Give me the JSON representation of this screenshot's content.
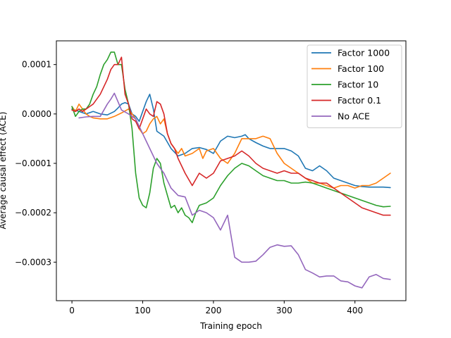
{
  "chart_data": {
    "type": "line",
    "title": "",
    "xlabel": "Training epoch",
    "ylabel": "Average causal effect (ACE)",
    "xlim": [
      -22,
      472
    ],
    "ylim": [
      -0.000378,
      0.000148
    ],
    "xticks": [
      0,
      100,
      200,
      300,
      400
    ],
    "xtick_labels": [
      "0",
      "100",
      "200",
      "300",
      "400"
    ],
    "yticks": [
      0.0001,
      0.0,
      -0.0001,
      -0.0002,
      -0.0003
    ],
    "ytick_labels": [
      "0.0001",
      "0.0000",
      "−0.0001",
      "−0.0002",
      "−0.0003"
    ],
    "grid": false,
    "legend_position": "top-right",
    "series": [
      {
        "name": "Factor 1000",
        "color": "#1f77b4",
        "x": [
          0,
          10,
          20,
          30,
          40,
          50,
          60,
          65,
          70,
          75,
          80,
          85,
          90,
          95,
          100,
          105,
          110,
          115,
          120,
          130,
          140,
          150,
          160,
          170,
          180,
          190,
          200,
          210,
          220,
          230,
          240,
          245,
          250,
          260,
          270,
          280,
          290,
          300,
          310,
          320,
          330,
          340,
          350,
          360,
          370,
          380,
          390,
          400,
          410,
          420,
          430,
          440,
          450
        ],
        "y": [
          1e-05,
          5e-06,
          0.0,
          5e-06,
          0.0,
          -2e-06,
          5e-06,
          1.2e-05,
          2e-05,
          2.3e-05,
          2e-05,
          0.0,
          -5e-06,
          -1.5e-05,
          5e-06,
          2.5e-05,
          4e-05,
          1e-05,
          -3.5e-05,
          -4.5e-05,
          -7e-05,
          -8.5e-05,
          -8e-05,
          -7e-05,
          -6.8e-05,
          -7.2e-05,
          -8e-05,
          -5.5e-05,
          -4.5e-05,
          -4.8e-05,
          -4.5e-05,
          -4.2e-05,
          -5e-05,
          -5.8e-05,
          -6.5e-05,
          -7e-05,
          -7e-05,
          -7e-05,
          -7.5e-05,
          -8.5e-05,
          -0.00011,
          -0.000115,
          -0.000105,
          -0.000115,
          -0.00013,
          -0.000135,
          -0.00014,
          -0.000145,
          -0.000147,
          -0.000148,
          -0.000148,
          -0.000148,
          -0.000149
        ]
      },
      {
        "name": "Factor 100",
        "color": "#ff7f0e",
        "x": [
          0,
          5,
          10,
          15,
          20,
          25,
          30,
          40,
          50,
          60,
          70,
          80,
          90,
          95,
          100,
          105,
          110,
          115,
          120,
          125,
          130,
          135,
          140,
          150,
          155,
          160,
          170,
          180,
          185,
          190,
          200,
          210,
          220,
          230,
          240,
          250,
          260,
          270,
          280,
          290,
          300,
          310,
          320,
          330,
          340,
          350,
          360,
          370,
          380,
          390,
          400,
          410,
          420,
          430,
          440,
          450
        ],
        "y": [
          1.5e-05,
          5e-06,
          2e-05,
          1e-05,
          0.0,
          -5e-06,
          -8e-06,
          -1e-05,
          -1e-05,
          -5e-06,
          2e-06,
          1e-05,
          -1e-05,
          -3e-05,
          -4e-05,
          -3.5e-05,
          -2e-05,
          -1e-05,
          -5e-06,
          -2e-05,
          -1e-05,
          -4e-05,
          -6e-05,
          -8e-05,
          -7e-05,
          -8.5e-05,
          -8e-05,
          -7e-05,
          -9e-05,
          -7.5e-05,
          -7e-05,
          -9e-05,
          -0.0001,
          -8e-05,
          -5e-05,
          -5e-05,
          -5e-05,
          -4.5e-05,
          -5e-05,
          -8e-05,
          -0.0001,
          -0.00011,
          -0.00012,
          -0.00013,
          -0.00014,
          -0.00014,
          -0.000145,
          -0.00015,
          -0.000145,
          -0.000145,
          -0.00015,
          -0.000145,
          -0.000145,
          -0.00014,
          -0.00013,
          -0.00012
        ]
      },
      {
        "name": "Factor 10",
        "color": "#2ca02c",
        "x": [
          0,
          5,
          10,
          15,
          20,
          25,
          30,
          35,
          40,
          45,
          50,
          55,
          60,
          65,
          70,
          75,
          80,
          85,
          90,
          95,
          100,
          105,
          110,
          115,
          120,
          125,
          130,
          135,
          140,
          145,
          150,
          155,
          160,
          165,
          170,
          175,
          180,
          190,
          200,
          210,
          220,
          230,
          240,
          250,
          260,
          270,
          280,
          290,
          300,
          310,
          320,
          330,
          340,
          350,
          360,
          370,
          380,
          390,
          400,
          410,
          420,
          430,
          440,
          450
        ],
        "y": [
          1.5e-05,
          -5e-06,
          5e-06,
          1e-05,
          1e-05,
          2e-05,
          4e-05,
          5.5e-05,
          8e-05,
          0.0001,
          0.00011,
          0.000125,
          0.000125,
          0.0001,
          0.0001,
          5e-05,
          2e-05,
          -3e-05,
          -0.00012,
          -0.00017,
          -0.000185,
          -0.00019,
          -0.00016,
          -0.00011,
          -9e-05,
          -0.0001,
          -0.00014,
          -0.000165,
          -0.00019,
          -0.000185,
          -0.0002,
          -0.00019,
          -0.000205,
          -0.00021,
          -0.00022,
          -0.0002,
          -0.000185,
          -0.00018,
          -0.00017,
          -0.000145,
          -0.000125,
          -0.00011,
          -0.0001,
          -0.000105,
          -0.000115,
          -0.000125,
          -0.00013,
          -0.000135,
          -0.000135,
          -0.00014,
          -0.00014,
          -0.000138,
          -0.00014,
          -0.000145,
          -0.00015,
          -0.000155,
          -0.00016,
          -0.000165,
          -0.00017,
          -0.000175,
          -0.00018,
          -0.000185,
          -0.000188,
          -0.000187
        ]
      },
      {
        "name": "Factor 0.1",
        "color": "#d62728",
        "x": [
          0,
          5,
          10,
          15,
          20,
          30,
          40,
          50,
          55,
          60,
          65,
          70,
          75,
          80,
          85,
          90,
          95,
          100,
          105,
          110,
          115,
          120,
          125,
          130,
          135,
          140,
          145,
          150,
          160,
          170,
          180,
          190,
          200,
          210,
          220,
          230,
          240,
          250,
          260,
          270,
          280,
          290,
          300,
          310,
          320,
          330,
          340,
          350,
          360,
          370,
          380,
          390,
          400,
          410,
          420,
          430,
          440,
          450
        ],
        "y": [
          8e-06,
          5e-06,
          1e-05,
          5e-06,
          1e-05,
          2e-05,
          4e-05,
          7e-05,
          9e-05,
          0.0001,
          0.0001,
          0.000115,
          4e-05,
          2e-05,
          -1e-05,
          -1.5e-05,
          -3e-05,
          -1e-05,
          1e-05,
          0.0,
          -5e-06,
          2.5e-05,
          2e-05,
          0.0,
          -4e-05,
          -6e-05,
          -7e-05,
          -9e-05,
          -0.00012,
          -0.000145,
          -0.00012,
          -0.00013,
          -0.00012,
          -9.5e-05,
          -9e-05,
          -8.5e-05,
          -7.5e-05,
          -8.5e-05,
          -0.0001,
          -0.00011,
          -0.000115,
          -0.00012,
          -0.000115,
          -0.00012,
          -0.00012,
          -0.00013,
          -0.000135,
          -0.00014,
          -0.00014,
          -0.00015,
          -0.00016,
          -0.00017,
          -0.00018,
          -0.00019,
          -0.000195,
          -0.0002,
          -0.000205,
          -0.000205
        ]
      },
      {
        "name": "No ACE",
        "color": "#9467bd",
        "x": [
          10,
          20,
          30,
          40,
          50,
          55,
          60,
          65,
          70,
          80,
          90,
          100,
          110,
          120,
          130,
          140,
          150,
          160,
          170,
          180,
          190,
          200,
          210,
          220,
          230,
          240,
          250,
          260,
          270,
          280,
          290,
          300,
          310,
          320,
          330,
          340,
          350,
          360,
          370,
          380,
          390,
          400,
          410,
          420,
          430,
          440,
          450
        ],
        "y": [
          -8e-06,
          -6e-06,
          -5e-06,
          -5e-06,
          2e-05,
          3e-05,
          4.2e-05,
          2.5e-05,
          8e-06,
          0.0,
          -1e-05,
          -4e-05,
          -7e-05,
          -0.0001,
          -0.00012,
          -0.00015,
          -0.000165,
          -0.000168,
          -0.000205,
          -0.000195,
          -0.0002,
          -0.00021,
          -0.000235,
          -0.000205,
          -0.00029,
          -0.0003,
          -0.0003,
          -0.000298,
          -0.000285,
          -0.00027,
          -0.000265,
          -0.000268,
          -0.000267,
          -0.000285,
          -0.000315,
          -0.000322,
          -0.00033,
          -0.000328,
          -0.000328,
          -0.000338,
          -0.00034,
          -0.000348,
          -0.000352,
          -0.00033,
          -0.000325,
          -0.000333,
          -0.000335
        ]
      }
    ]
  }
}
